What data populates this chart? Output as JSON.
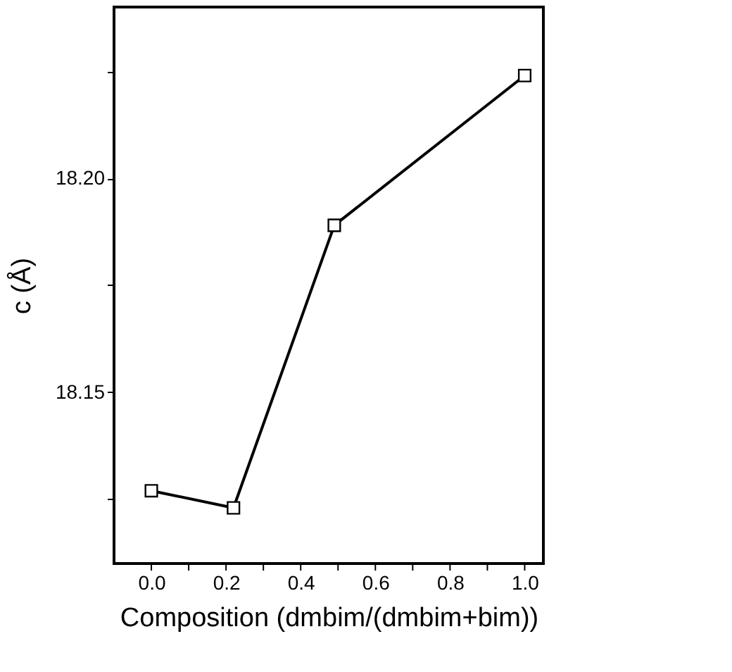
{
  "chart_data": {
    "type": "line",
    "xlabel": "Composition (dmbim/(dmbim+bim))",
    "ylabel": "c (Å)",
    "x": [
      0.0,
      0.22,
      0.49,
      1.0
    ],
    "series": [
      {
        "color": "#000000",
        "values": [
          18.127,
          18.123,
          18.189,
          18.224
        ]
      }
    ],
    "xlim": [
      -0.1,
      1.05
    ],
    "ylim": [
      18.11,
      18.24
    ],
    "xticks": [
      {
        "value": 0.0,
        "label": "0.0"
      },
      {
        "value": 0.1,
        "label": null
      },
      {
        "value": 0.2,
        "label": "0.2"
      },
      {
        "value": 0.3,
        "label": null
      },
      {
        "value": 0.4,
        "label": "0.4"
      },
      {
        "value": 0.5,
        "label": null
      },
      {
        "value": 0.6,
        "label": "0.6"
      },
      {
        "value": 0.7,
        "label": null
      },
      {
        "value": 0.8,
        "label": "0.8"
      },
      {
        "value": 0.9,
        "label": null
      },
      {
        "value": 1.0,
        "label": "1.0"
      }
    ],
    "yticks": [
      {
        "value": 18.125,
        "label": null
      },
      {
        "value": 18.15,
        "label": "18.15"
      },
      {
        "value": 18.175,
        "label": null
      },
      {
        "value": 18.2,
        "label": "18.20"
      },
      {
        "value": 18.225,
        "label": null
      }
    ],
    "marker": "square",
    "line_style": "solid",
    "grid": false,
    "legend": false
  }
}
